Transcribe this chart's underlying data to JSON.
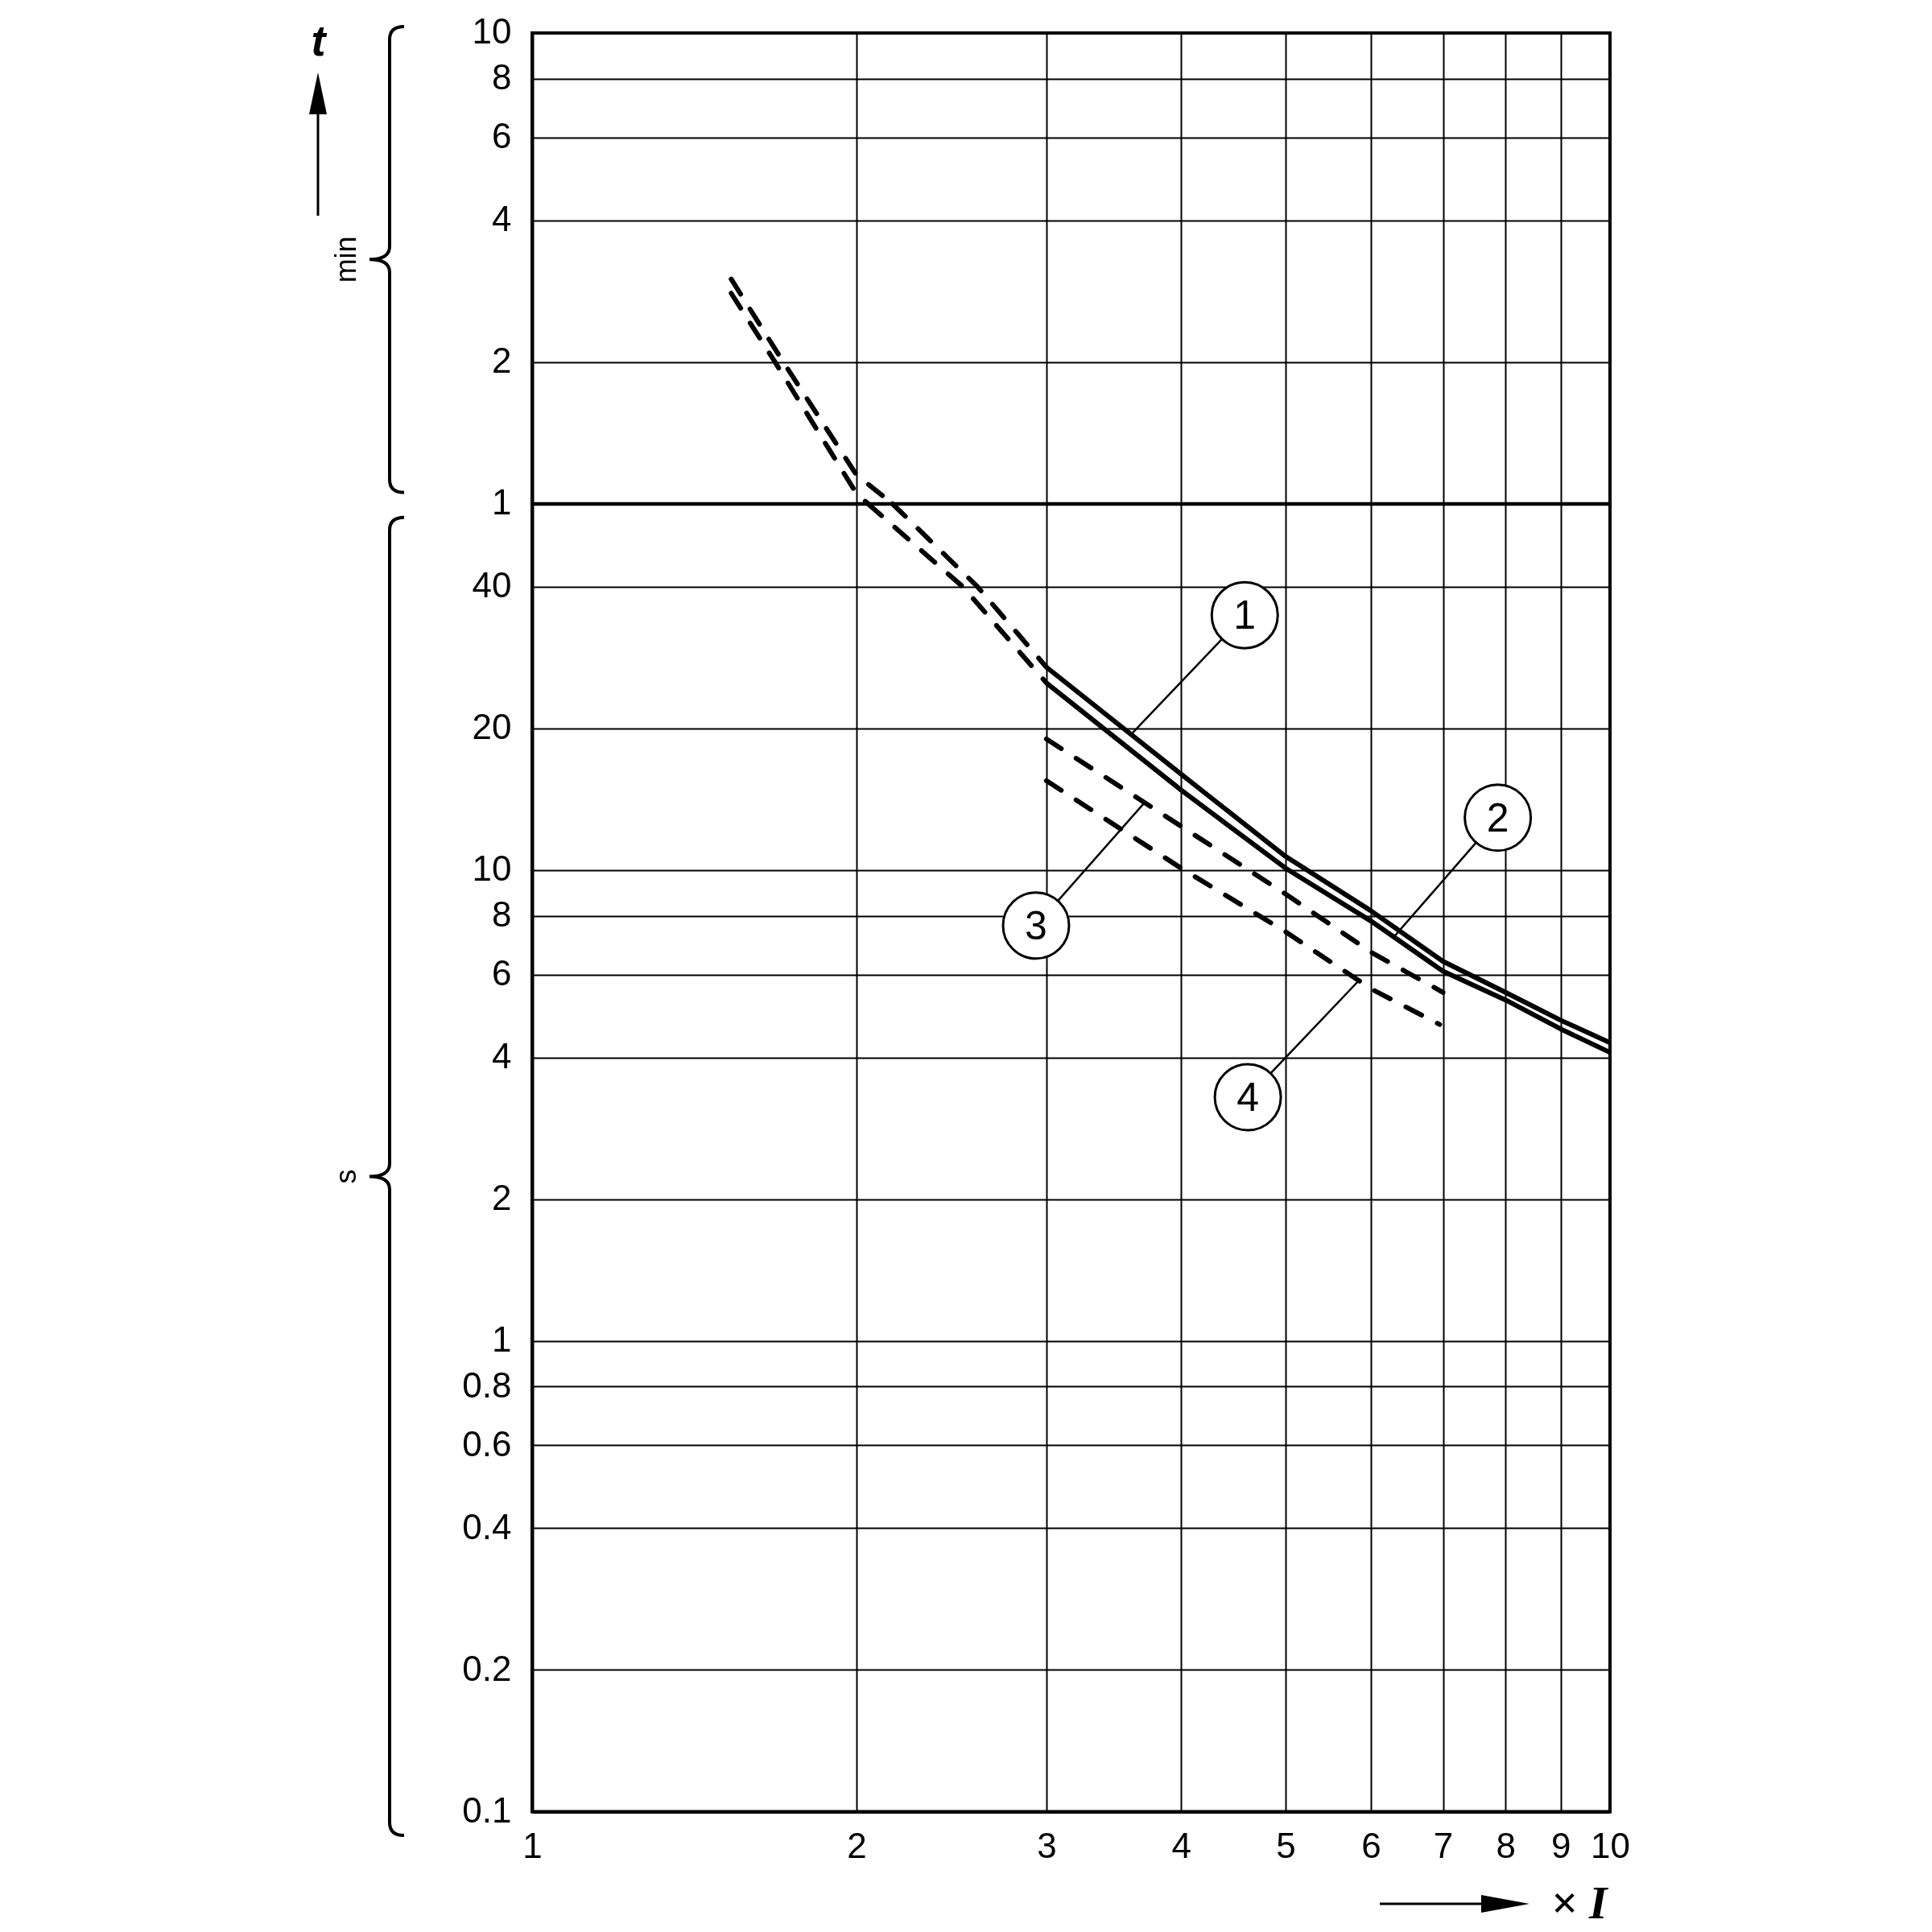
{
  "chart_data": [
    {
      "type": "line",
      "ylabel": "t",
      "annotations": [
        "min"
      ],
      "xlim": [
        1,
        10
      ],
      "xticks": [
        1,
        2,
        3,
        4,
        5,
        6,
        7,
        8,
        9,
        10
      ],
      "ylim": [
        1,
        10
      ],
      "yticks": [
        1,
        2,
        4,
        6,
        8,
        10
      ],
      "log": "xy",
      "grid": true,
      "tick_labels": "y",
      "series": [
        {
          "color": "#000000",
          "line_style": "dashed",
          "x": [
            1.53,
            1.71,
            2,
            2.16
          ],
          "values": [
            3,
            2,
            1.15,
            1
          ]
        },
        {
          "color": "#000000",
          "line_style": "dashed",
          "x": [
            1.53,
            1.68,
            2,
            2.05
          ],
          "values": [
            2.8,
            2,
            1.05,
            1
          ]
        }
      ]
    },
    {
      "type": "line",
      "xlabel": "× I",
      "annotations": [
        "s"
      ],
      "xlim": [
        1,
        10
      ],
      "xticks": [
        1,
        2,
        3,
        4,
        5,
        6,
        7,
        8,
        9,
        10
      ],
      "ylim": [
        0.1,
        60
      ],
      "yticks": [
        0.1,
        0.2,
        0.4,
        0.6,
        0.8,
        1,
        2,
        4,
        6,
        8,
        10,
        20,
        40
      ],
      "log": "xy",
      "grid": true,
      "series": [
        {
          "name": "1",
          "color": "#000000",
          "line_style": "solid",
          "x": [
            3,
            4,
            5,
            6,
            7,
            8,
            9,
            10
          ],
          "values": [
            27,
            16,
            10.7,
            8.2,
            6.4,
            5.5,
            4.8,
            4.3
          ]
        },
        {
          "name": "2",
          "color": "#000000",
          "line_style": "solid",
          "x": [
            3,
            4,
            5,
            6,
            7,
            8,
            9,
            10
          ],
          "values": [
            25,
            14.8,
            10.1,
            7.8,
            6.1,
            5.3,
            4.6,
            4.1
          ]
        },
        {
          "name": "3",
          "color": "#000000",
          "line_style": "dashed",
          "x": [
            3,
            4,
            5,
            6,
            7
          ],
          "values": [
            19,
            12.4,
            8.9,
            6.7,
            5.5
          ]
        },
        {
          "name": "4",
          "color": "#000000",
          "line_style": "dashed",
          "x": [
            3,
            4,
            5,
            6,
            6.95
          ],
          "values": [
            15.5,
            10.1,
            7.4,
            5.6,
            4.7
          ]
        },
        {
          "color": "#000000",
          "line_style": "dashed",
          "x": [
            2.16,
            2.59,
            3
          ],
          "values": [
            60,
            40,
            27
          ]
        },
        {
          "color": "#000000",
          "line_style": "dashed",
          "x": [
            2.05,
            2.51,
            3
          ],
          "values": [
            60,
            40,
            25
          ]
        }
      ]
    }
  ]
}
